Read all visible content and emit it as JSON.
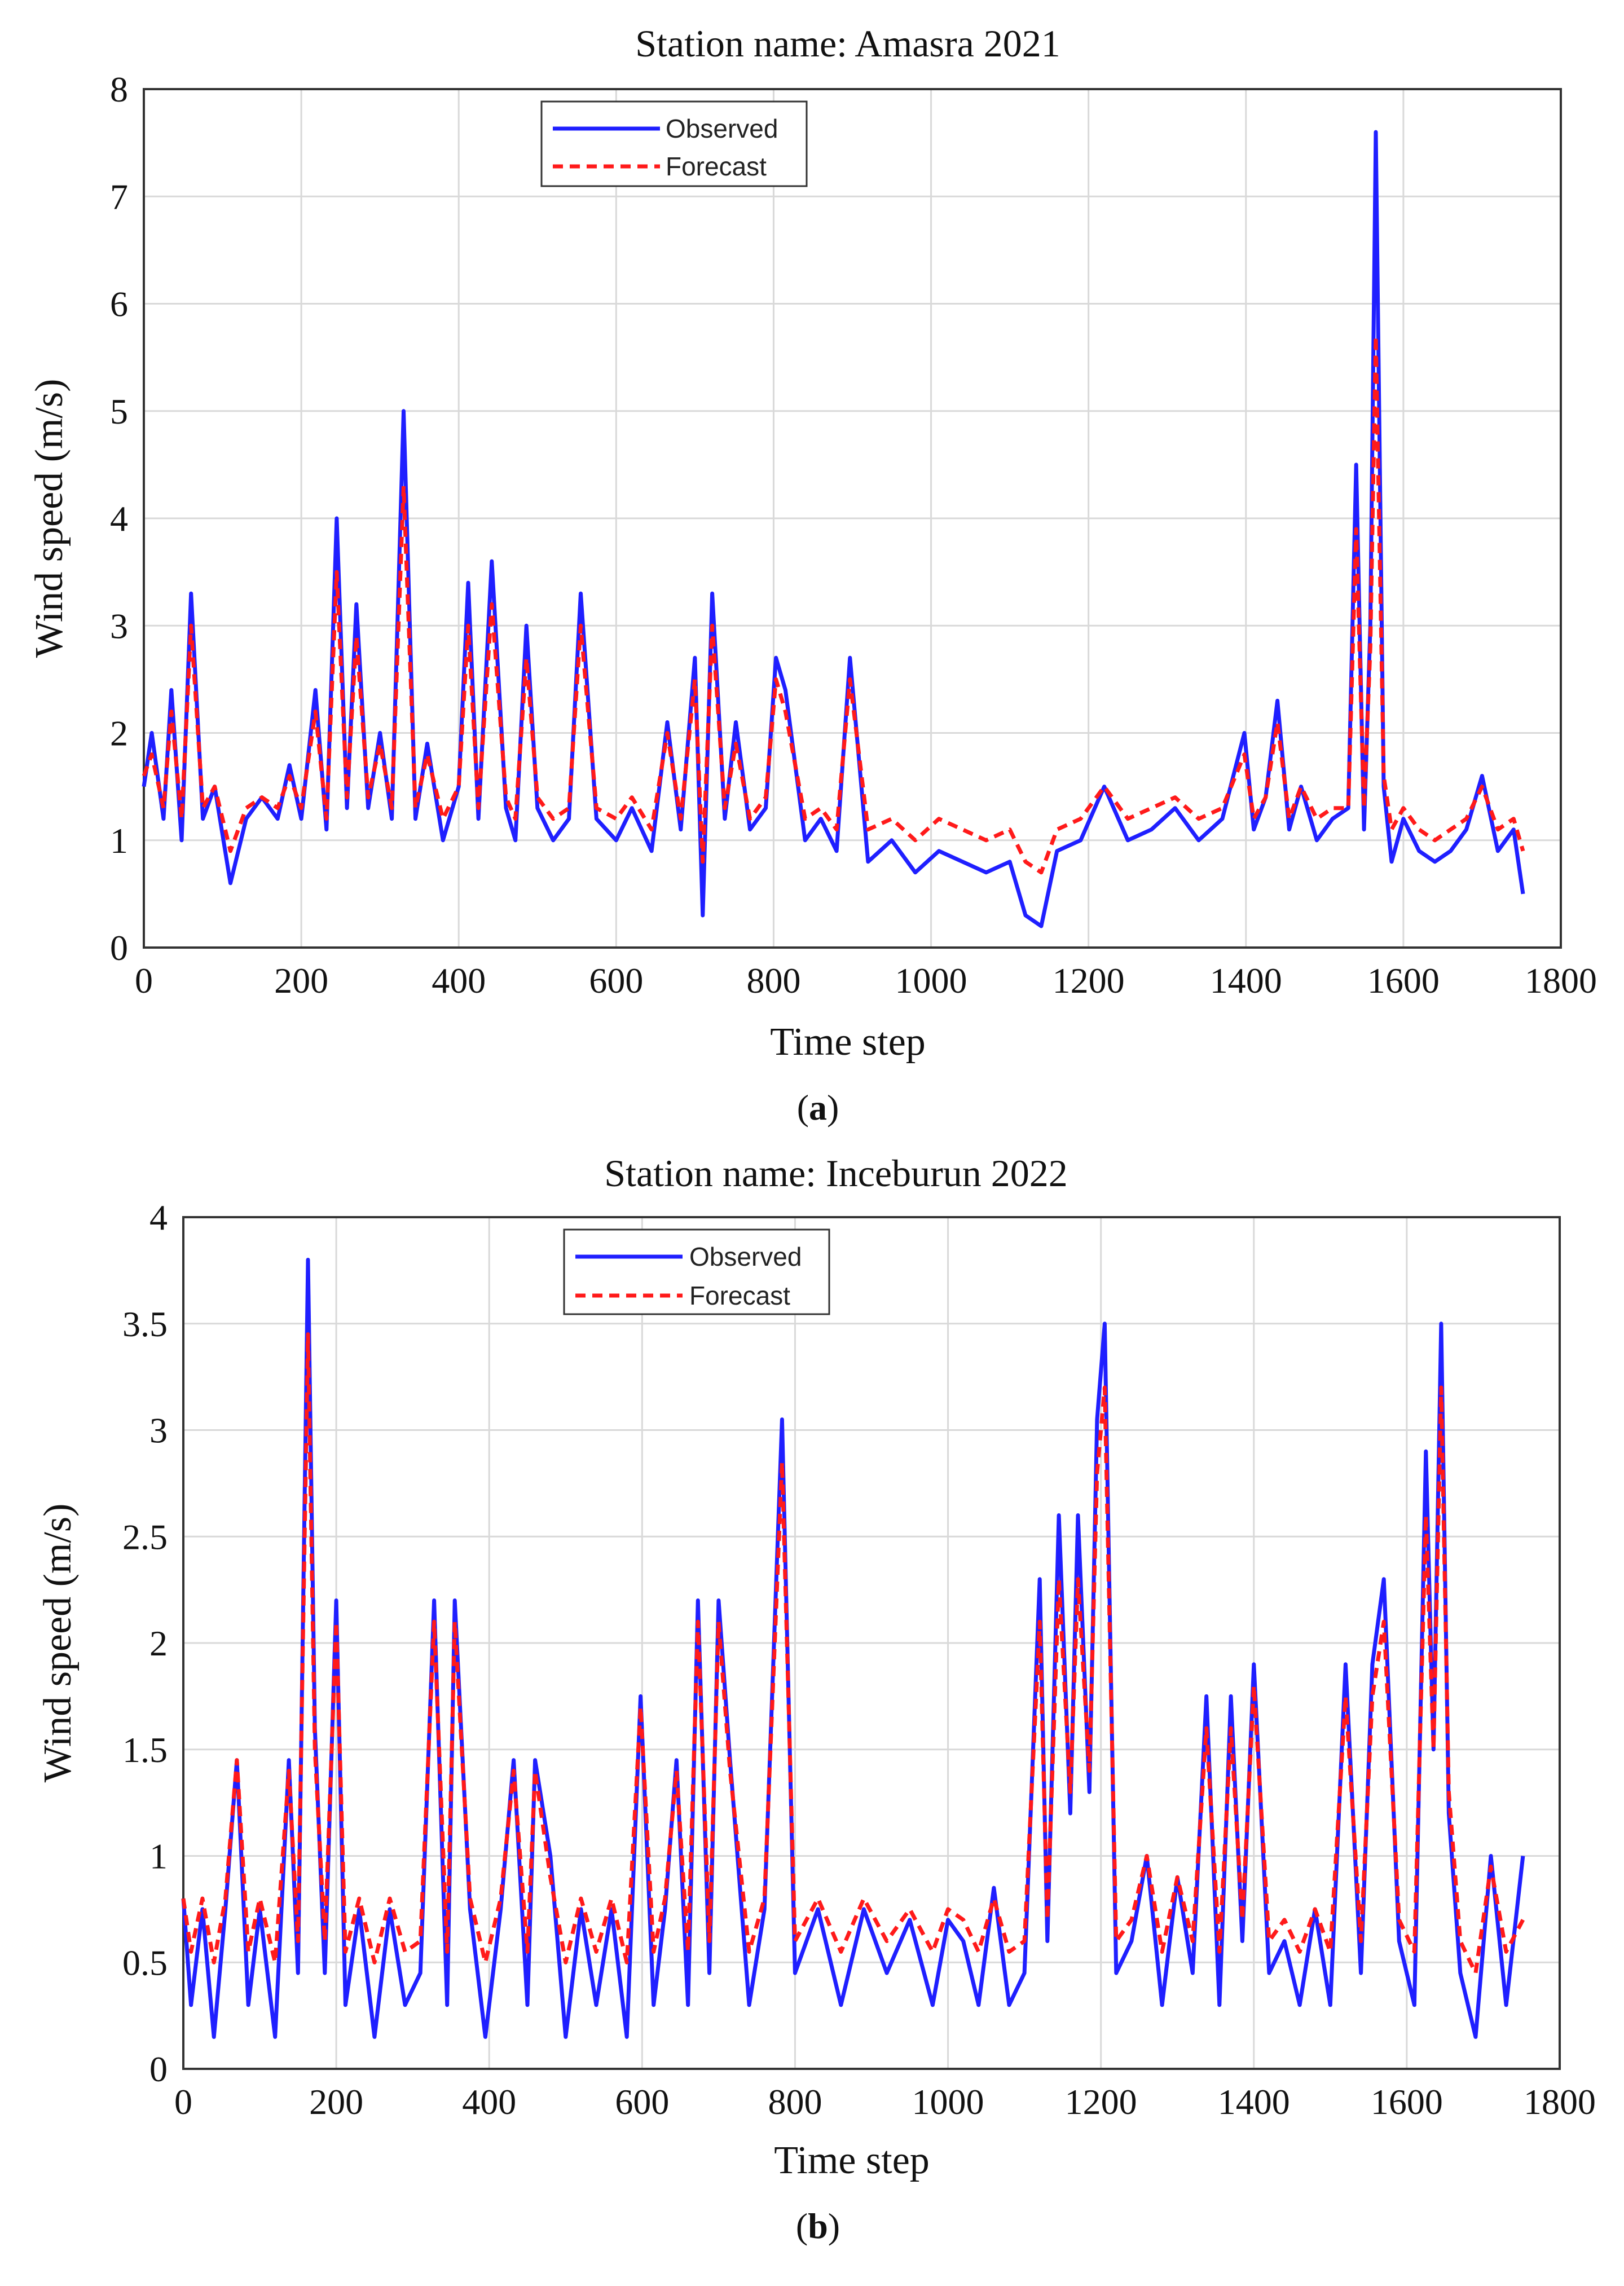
{
  "chart_data": [
    {
      "type": "line",
      "title": "Station name: Amasra 2021",
      "xlabel": "Time step",
      "ylabel": "Wind speed (m/s)",
      "caption_label": "a",
      "xlim": [
        0,
        1800
      ],
      "ylim": [
        0,
        8
      ],
      "xticks": [
        0,
        200,
        400,
        600,
        800,
        1000,
        1200,
        1400,
        1600,
        1800
      ],
      "yticks": [
        0,
        1,
        2,
        3,
        4,
        5,
        6,
        7,
        8
      ],
      "grid": true,
      "legend_position": "top-center",
      "series": [
        {
          "name": "Observed",
          "color": "#1f1fff",
          "style": "solid",
          "x": [
            0,
            10,
            25,
            35,
            48,
            60,
            75,
            90,
            110,
            130,
            150,
            170,
            185,
            200,
            218,
            232,
            245,
            258,
            270,
            285,
            300,
            315,
            330,
            345,
            360,
            380,
            400,
            412,
            425,
            442,
            460,
            472,
            486,
            500,
            520,
            540,
            555,
            575,
            600,
            620,
            645,
            665,
            682,
            700,
            710,
            722,
            738,
            752,
            770,
            790,
            803,
            815,
            840,
            860,
            880,
            897,
            920,
            950,
            980,
            1010,
            1040,
            1070,
            1100,
            1120,
            1140,
            1160,
            1190,
            1220,
            1250,
            1280,
            1310,
            1340,
            1370,
            1398,
            1410,
            1425,
            1440,
            1455,
            1470,
            1490,
            1510,
            1530,
            1540,
            1550,
            1558,
            1565,
            1575,
            1585,
            1600,
            1620,
            1640,
            1660,
            1680,
            1700,
            1720,
            1740,
            1752
          ],
          "values": [
            1.5,
            2.0,
            1.2,
            2.4,
            1.0,
            3.3,
            1.2,
            1.5,
            0.6,
            1.2,
            1.4,
            1.2,
            1.7,
            1.2,
            2.4,
            1.1,
            4.0,
            1.3,
            3.2,
            1.3,
            2.0,
            1.2,
            5.0,
            1.2,
            1.9,
            1.0,
            1.5,
            3.4,
            1.2,
            3.6,
            1.3,
            1.0,
            3.0,
            1.3,
            1.0,
            1.2,
            3.3,
            1.2,
            1.0,
            1.3,
            0.9,
            2.1,
            1.1,
            2.7,
            0.3,
            3.3,
            1.2,
            2.1,
            1.1,
            1.3,
            2.7,
            2.4,
            1.0,
            1.2,
            0.9,
            2.7,
            0.8,
            1.0,
            0.7,
            0.9,
            0.8,
            0.7,
            0.8,
            0.3,
            0.2,
            0.9,
            1.0,
            1.5,
            1.0,
            1.1,
            1.3,
            1.0,
            1.2,
            2.0,
            1.1,
            1.4,
            2.3,
            1.1,
            1.5,
            1.0,
            1.2,
            1.3,
            4.5,
            1.1,
            3.0,
            7.6,
            1.5,
            0.8,
            1.2,
            0.9,
            0.8,
            0.9,
            1.1,
            1.6,
            0.9,
            1.1,
            0.5
          ]
        },
        {
          "name": "Forecast",
          "color": "#ff1a1a",
          "style": "dashed",
          "x": [
            0,
            10,
            25,
            35,
            48,
            60,
            75,
            90,
            110,
            130,
            150,
            170,
            185,
            200,
            218,
            232,
            245,
            258,
            270,
            285,
            300,
            315,
            330,
            345,
            360,
            380,
            400,
            412,
            425,
            442,
            460,
            472,
            486,
            500,
            520,
            540,
            555,
            575,
            600,
            620,
            645,
            665,
            682,
            700,
            710,
            722,
            738,
            752,
            770,
            790,
            803,
            815,
            840,
            860,
            880,
            897,
            920,
            950,
            980,
            1010,
            1040,
            1070,
            1100,
            1120,
            1140,
            1160,
            1190,
            1220,
            1250,
            1280,
            1310,
            1340,
            1370,
            1398,
            1410,
            1425,
            1440,
            1455,
            1470,
            1490,
            1510,
            1530,
            1540,
            1550,
            1558,
            1565,
            1575,
            1585,
            1600,
            1620,
            1640,
            1660,
            1680,
            1700,
            1720,
            1740,
            1752
          ],
          "values": [
            1.6,
            1.8,
            1.3,
            2.2,
            1.2,
            3.0,
            1.3,
            1.5,
            0.9,
            1.3,
            1.4,
            1.3,
            1.6,
            1.3,
            2.2,
            1.2,
            3.5,
            1.4,
            2.9,
            1.4,
            1.9,
            1.3,
            4.3,
            1.3,
            1.8,
            1.2,
            1.5,
            3.0,
            1.3,
            3.2,
            1.4,
            1.2,
            2.7,
            1.4,
            1.2,
            1.3,
            3.0,
            1.3,
            1.2,
            1.4,
            1.1,
            2.0,
            1.2,
            2.5,
            0.8,
            3.0,
            1.3,
            1.9,
            1.2,
            1.4,
            2.5,
            2.2,
            1.2,
            1.3,
            1.1,
            2.5,
            1.1,
            1.2,
            1.0,
            1.2,
            1.1,
            1.0,
            1.1,
            0.8,
            0.7,
            1.1,
            1.2,
            1.5,
            1.2,
            1.3,
            1.4,
            1.2,
            1.3,
            1.8,
            1.2,
            1.4,
            2.1,
            1.2,
            1.5,
            1.2,
            1.3,
            1.3,
            3.9,
            1.3,
            2.8,
            5.7,
            1.6,
            1.1,
            1.3,
            1.1,
            1.0,
            1.1,
            1.2,
            1.5,
            1.1,
            1.2,
            0.9
          ]
        }
      ]
    },
    {
      "type": "line",
      "title": "Station name: Inceburun 2022",
      "xlabel": "Time step",
      "ylabel": "Wind speed (m/s)",
      "caption_label": "b",
      "xlim": [
        0,
        1800
      ],
      "ylim": [
        0,
        4
      ],
      "xticks": [
        0,
        200,
        400,
        600,
        800,
        1000,
        1200,
        1400,
        1600,
        1800
      ],
      "yticks": [
        0,
        0.5,
        1,
        1.5,
        2,
        2.5,
        3,
        3.5,
        4
      ],
      "grid": true,
      "legend_position": "top-center",
      "series": [
        {
          "name": "Observed",
          "color": "#1f1fff",
          "style": "solid",
          "x": [
            0,
            10,
            25,
            40,
            55,
            70,
            85,
            100,
            120,
            138,
            150,
            163,
            172,
            185,
            200,
            212,
            230,
            250,
            270,
            290,
            310,
            328,
            345,
            355,
            375,
            395,
            415,
            432,
            450,
            460,
            480,
            500,
            520,
            540,
            560,
            580,
            598,
            615,
            630,
            645,
            660,
            673,
            688,
            700,
            715,
            740,
            760,
            783,
            800,
            830,
            860,
            890,
            920,
            950,
            980,
            1000,
            1020,
            1040,
            1060,
            1080,
            1100,
            1120,
            1130,
            1145,
            1160,
            1170,
            1185,
            1195,
            1205,
            1220,
            1240,
            1260,
            1280,
            1300,
            1320,
            1338,
            1355,
            1370,
            1385,
            1400,
            1420,
            1440,
            1460,
            1480,
            1500,
            1520,
            1540,
            1555,
            1570,
            1590,
            1610,
            1625,
            1635,
            1645,
            1655,
            1670,
            1690,
            1710,
            1730,
            1752
          ],
          "values": [
            0.8,
            0.3,
            0.75,
            0.15,
            0.75,
            1.45,
            0.3,
            0.75,
            0.15,
            1.45,
            0.45,
            3.8,
            1.6,
            0.45,
            2.2,
            0.3,
            0.75,
            0.15,
            0.75,
            0.3,
            0.45,
            2.2,
            0.3,
            2.2,
            0.75,
            0.15,
            0.75,
            1.45,
            0.3,
            1.45,
            1.0,
            0.15,
            0.75,
            0.3,
            0.75,
            0.15,
            1.75,
            0.3,
            0.75,
            1.45,
            0.3,
            2.2,
            0.45,
            2.2,
            1.45,
            0.3,
            0.75,
            3.05,
            0.45,
            0.75,
            0.3,
            0.75,
            0.45,
            0.7,
            0.3,
            0.7,
            0.6,
            0.3,
            0.85,
            0.3,
            0.45,
            2.3,
            0.6,
            2.6,
            1.2,
            2.6,
            1.3,
            3.05,
            3.5,
            0.45,
            0.6,
            1.0,
            0.3,
            0.9,
            0.45,
            1.75,
            0.3,
            1.75,
            0.6,
            1.9,
            0.45,
            0.6,
            0.3,
            0.75,
            0.3,
            1.9,
            0.45,
            1.9,
            2.3,
            0.6,
            0.3,
            2.9,
            1.5,
            3.5,
            1.2,
            0.45,
            0.15,
            1.0,
            0.3,
            1.0
          ]
        },
        {
          "name": "Forecast",
          "color": "#ff1a1a",
          "style": "dashed",
          "x": [
            0,
            10,
            25,
            40,
            55,
            70,
            85,
            100,
            120,
            138,
            150,
            163,
            172,
            185,
            200,
            212,
            230,
            250,
            270,
            290,
            310,
            328,
            345,
            355,
            375,
            395,
            415,
            432,
            450,
            460,
            480,
            500,
            520,
            540,
            560,
            580,
            598,
            615,
            630,
            645,
            660,
            673,
            688,
            700,
            715,
            740,
            760,
            783,
            800,
            830,
            860,
            890,
            920,
            950,
            980,
            1000,
            1020,
            1040,
            1060,
            1080,
            1100,
            1120,
            1130,
            1145,
            1160,
            1170,
            1185,
            1195,
            1205,
            1220,
            1240,
            1260,
            1280,
            1300,
            1320,
            1338,
            1355,
            1370,
            1385,
            1400,
            1420,
            1440,
            1460,
            1480,
            1500,
            1520,
            1540,
            1555,
            1570,
            1590,
            1610,
            1625,
            1635,
            1645,
            1655,
            1670,
            1690,
            1710,
            1730,
            1752
          ],
          "values": [
            0.8,
            0.55,
            0.8,
            0.5,
            0.8,
            1.45,
            0.55,
            0.8,
            0.5,
            1.4,
            0.6,
            3.45,
            1.5,
            0.6,
            2.1,
            0.55,
            0.8,
            0.5,
            0.8,
            0.55,
            0.6,
            2.1,
            0.55,
            2.1,
            0.8,
            0.5,
            0.8,
            1.4,
            0.55,
            1.4,
            0.9,
            0.5,
            0.8,
            0.55,
            0.8,
            0.5,
            1.7,
            0.55,
            0.8,
            1.4,
            0.55,
            2.1,
            0.6,
            2.1,
            1.4,
            0.55,
            0.8,
            2.85,
            0.6,
            0.8,
            0.55,
            0.8,
            0.6,
            0.75,
            0.55,
            0.75,
            0.7,
            0.55,
            0.8,
            0.55,
            0.6,
            2.1,
            0.7,
            2.3,
            1.3,
            2.3,
            1.4,
            2.8,
            3.2,
            0.6,
            0.7,
            1.0,
            0.55,
            0.9,
            0.6,
            1.6,
            0.55,
            1.6,
            0.7,
            1.8,
            0.6,
            0.7,
            0.55,
            0.75,
            0.55,
            1.75,
            0.6,
            1.75,
            2.1,
            0.7,
            0.55,
            2.6,
            1.5,
            3.2,
            1.3,
            0.6,
            0.45,
            0.95,
            0.55,
            0.7
          ]
        }
      ]
    }
  ]
}
